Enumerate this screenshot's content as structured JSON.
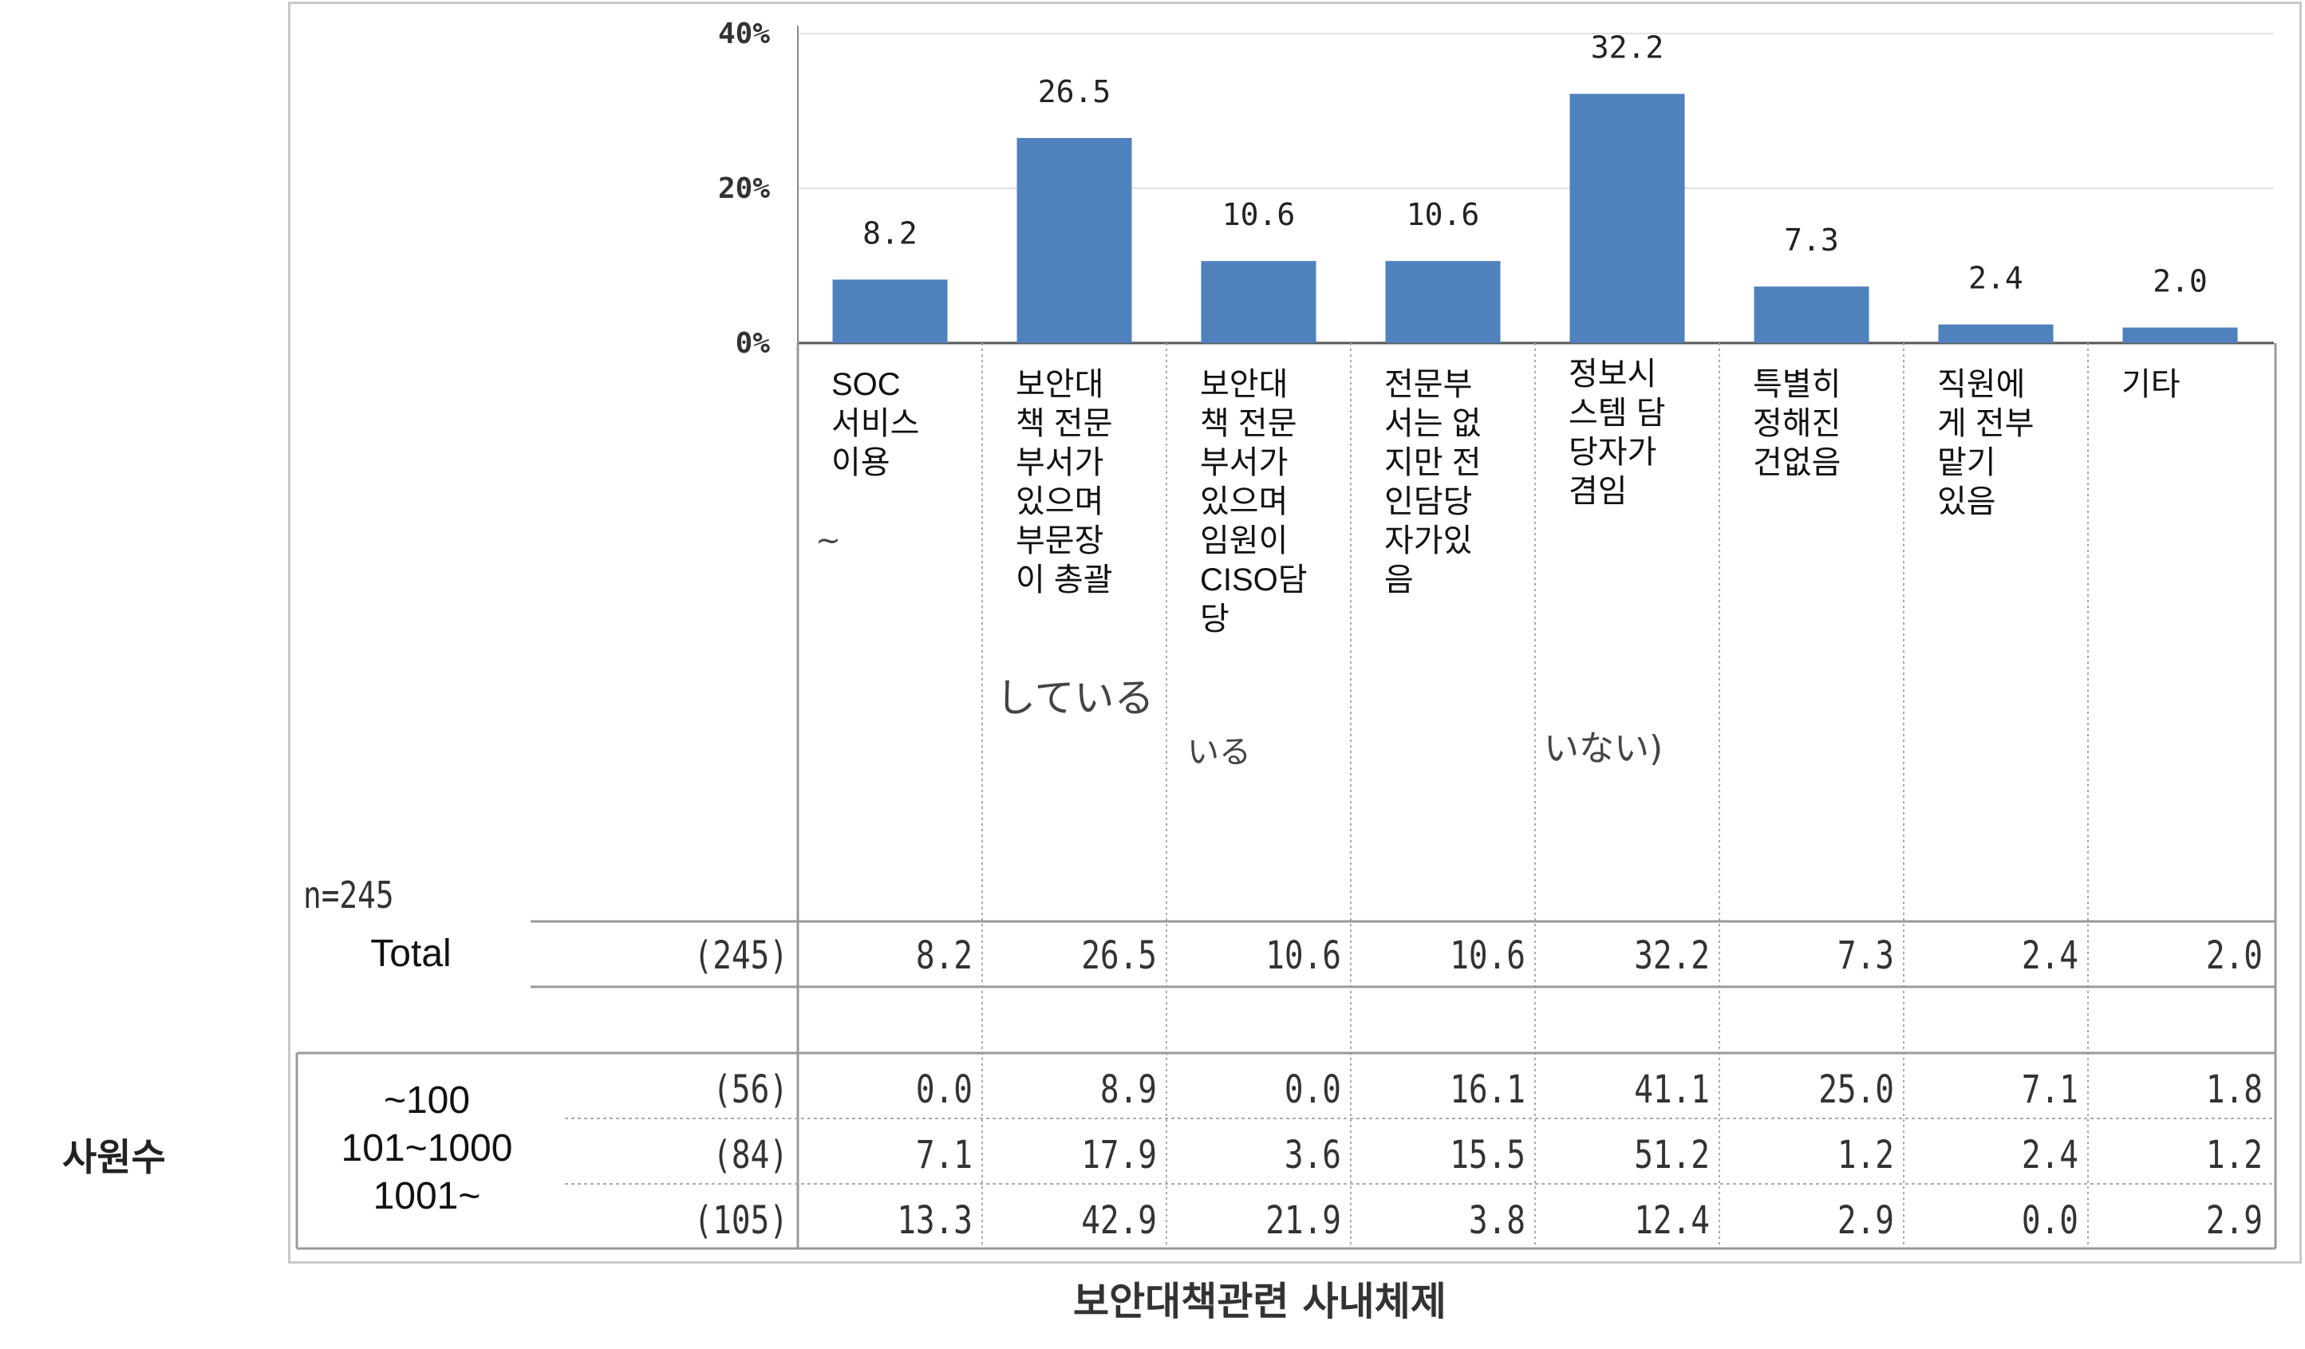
{
  "chart_data": {
    "type": "bar",
    "n_label": "n=245",
    "y_ticks": [
      "40%",
      "20%",
      "0%"
    ],
    "ylim": [
      0,
      40
    ],
    "color": "#4f81bd",
    "categories": [
      "SOC\n서비스\n이용",
      "보안대\n책 전문\n부서가\n있으며\n부문장\n이 총괄",
      "보안대\n책 전문\n부서가\n있으며\n임원이\nCISO담\n당",
      "전문부\n서는 없\n지만 전\n인담당\n자가있\n음",
      "정보시\n스템 담\n당자가\n겸임",
      "특별히\n정해진\n건없음",
      "직원에\n게 전부\n맡기\n있음",
      "기타"
    ],
    "values": [
      8.2,
      26.5,
      10.6,
      10.6,
      32.2,
      7.3,
      2.4,
      2.0
    ],
    "value_labels": [
      "8.2",
      "26.5",
      "10.6",
      "10.6",
      "32.2",
      "7.3",
      "2.4",
      "2.0"
    ],
    "residual_marks": [
      "~",
      "している",
      "いる",
      "いない)"
    ],
    "total_row": {
      "label": "Total",
      "n": "(245)",
      "cells": [
        "8.2",
        "26.5",
        "10.6",
        "10.6",
        "32.2",
        "7.3",
        "2.4",
        "2.0"
      ]
    },
    "group_label": "사원수",
    "sub_row_labels": [
      "~100",
      "101~1000",
      "1001~"
    ],
    "sub_rows": [
      {
        "n": "(56)",
        "cells": [
          "0.0",
          "8.9",
          "0.0",
          "16.1",
          "41.1",
          "25.0",
          "7.1",
          "1.8"
        ]
      },
      {
        "n": "(84)",
        "cells": [
          "7.1",
          "17.9",
          "3.6",
          "15.5",
          "51.2",
          "1.2",
          "2.4",
          "1.2"
        ]
      },
      {
        "n": "(105)",
        "cells": [
          "13.3",
          "42.9",
          "21.9",
          "3.8",
          "12.4",
          "2.9",
          "0.0",
          "2.9"
        ]
      }
    ],
    "xlabel": "보안대책관련 사내체제"
  }
}
